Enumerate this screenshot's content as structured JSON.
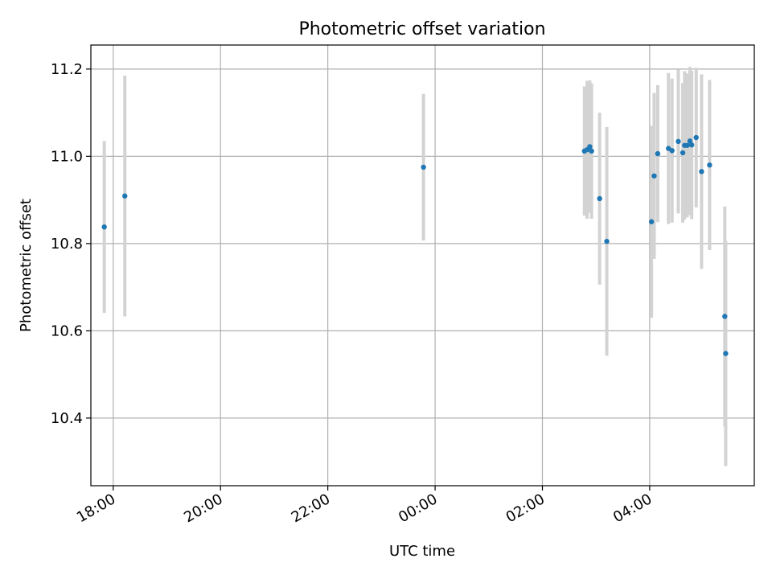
{
  "chart_data": {
    "type": "scatter",
    "title": "Photometric offset variation",
    "xlabel": "UTC time",
    "ylabel": "Photometric offset",
    "grid": true,
    "colors": {
      "points": "#1f77b4",
      "errorbars": "#d3d3d3",
      "grid": "#b0b0b0"
    },
    "x_ticks": [
      "18:00",
      "20:00",
      "22:00",
      "00:00",
      "02:00",
      "04:00"
    ],
    "y_ticks": [
      "10.4",
      "10.6",
      "10.8",
      "11.0",
      "11.2"
    ],
    "xlim": [
      "17:35",
      "05:57"
    ],
    "ylim": [
      10.245,
      11.255
    ],
    "points": [
      {
        "x": "17:50",
        "y": 10.838,
        "yerr": 0.197
      },
      {
        "x": "18:13",
        "y": 10.909,
        "yerr": 0.276
      },
      {
        "x": "23:47",
        "y": 10.975,
        "yerr": 0.168
      },
      {
        "x": "02:47",
        "y": 11.012,
        "yerr": 0.148
      },
      {
        "x": "02:50",
        "y": 11.015,
        "yerr": 0.158
      },
      {
        "x": "02:53",
        "y": 11.022,
        "yerr": 0.152
      },
      {
        "x": "02:55",
        "y": 11.012,
        "yerr": 0.155
      },
      {
        "x": "03:04",
        "y": 10.903,
        "yerr": 0.197
      },
      {
        "x": "03:12",
        "y": 10.805,
        "yerr": 0.262
      },
      {
        "x": "04:02",
        "y": 10.85,
        "yerr": 0.22
      },
      {
        "x": "04:05",
        "y": 10.955,
        "yerr": 0.19
      },
      {
        "x": "04:09",
        "y": 11.006,
        "yerr": 0.157
      },
      {
        "x": "04:21",
        "y": 11.018,
        "yerr": 0.173
      },
      {
        "x": "04:25",
        "y": 11.013,
        "yerr": 0.165
      },
      {
        "x": "04:32",
        "y": 11.034,
        "yerr": 0.165
      },
      {
        "x": "04:37",
        "y": 11.008,
        "yerr": 0.16
      },
      {
        "x": "04:39",
        "y": 11.025,
        "yerr": 0.17
      },
      {
        "x": "04:42",
        "y": 11.025,
        "yerr": 0.165
      },
      {
        "x": "04:45",
        "y": 11.035,
        "yerr": 0.17
      },
      {
        "x": "04:47",
        "y": 11.026,
        "yerr": 0.17
      },
      {
        "x": "04:52",
        "y": 11.043,
        "yerr": 0.16
      },
      {
        "x": "04:58",
        "y": 10.965,
        "yerr": 0.223
      },
      {
        "x": "05:07",
        "y": 10.98,
        "yerr": 0.195
      },
      {
        "x": "05:24",
        "y": 10.633,
        "yerr": 0.252
      },
      {
        "x": "05:25",
        "y": 10.548,
        "yerr": 0.258
      }
    ]
  }
}
